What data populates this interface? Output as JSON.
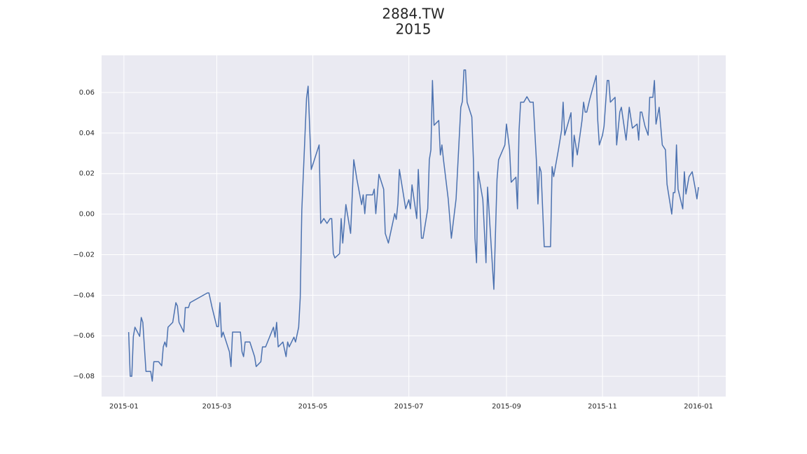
{
  "chart_data": {
    "type": "line",
    "title": "2884.TW",
    "subtitle": "2015",
    "x": [
      3,
      4,
      5,
      6,
      7,
      10,
      11,
      12,
      14,
      17,
      18,
      19,
      22,
      24,
      25,
      26,
      27,
      28,
      31,
      33,
      34,
      35,
      38,
      39,
      41,
      42,
      53,
      54,
      56,
      59,
      60,
      61,
      62,
      63,
      67,
      68,
      69,
      74,
      75,
      76,
      77,
      80,
      83,
      84,
      87,
      88,
      90,
      95,
      96,
      97,
      98,
      101,
      103,
      104,
      105,
      108,
      109,
      111,
      112,
      113,
      116,
      117,
      119,
      124,
      125,
      127,
      129,
      131,
      132,
      133,
      134,
      137,
      138,
      139,
      141,
      144,
      146,
      148,
      151,
      152,
      153,
      154,
      158,
      159,
      160,
      162,
      165,
      166,
      168,
      172,
      173,
      174,
      175,
      176,
      179,
      181,
      182,
      183,
      186,
      187,
      189,
      190,
      193,
      194,
      195,
      196,
      197,
      200,
      201,
      202,
      203,
      206,
      208,
      211,
      214,
      215,
      216,
      217,
      218,
      221,
      222,
      223,
      224,
      225,
      228,
      230,
      231,
      235,
      237,
      238,
      242,
      243,
      245,
      246,
      249,
      250,
      251,
      252,
      254,
      256,
      258,
      260,
      262,
      263,
      264,
      265,
      267,
      271,
      272,
      273,
      276,
      278,
      279,
      280,
      284,
      285,
      286,
      287,
      288,
      291,
      292,
      293,
      294,
      296,
      300,
      301,
      302,
      304,
      305,
      307,
      308,
      309,
      312,
      313,
      315,
      316,
      319,
      321,
      323,
      326,
      327,
      328,
      329,
      331,
      333,
      334,
      336,
      337,
      338,
      340,
      342,
      344,
      345,
      348,
      349,
      350,
      351,
      352,
      355,
      356,
      357,
      359,
      361,
      363,
      364,
      365
    ],
    "values": [
      -0.0582,
      -0.08,
      -0.08,
      -0.0603,
      -0.0558,
      -0.0603,
      -0.051,
      -0.0534,
      -0.0776,
      -0.0776,
      -0.0824,
      -0.0728,
      -0.0728,
      -0.0748,
      -0.0655,
      -0.0631,
      -0.0655,
      -0.0558,
      -0.0534,
      -0.0437,
      -0.0454,
      -0.0534,
      -0.0582,
      -0.0461,
      -0.0461,
      -0.0437,
      -0.0389,
      -0.0389,
      -0.0461,
      -0.0555,
      -0.0555,
      -0.0437,
      -0.0607,
      -0.0582,
      -0.0679,
      -0.0752,
      -0.0582,
      -0.0582,
      -0.0679,
      -0.0703,
      -0.0631,
      -0.0631,
      -0.0703,
      -0.0752,
      -0.0728,
      -0.0655,
      -0.0655,
      -0.0558,
      -0.0607,
      -0.0534,
      -0.0655,
      -0.0631,
      -0.0703,
      -0.0631,
      -0.0655,
      -0.0607,
      -0.0631,
      -0.0558,
      -0.0413,
      0.0019,
      0.0572,
      0.0631,
      0.022,
      0.0341,
      -0.0046,
      -0.0022,
      -0.0046,
      -0.0022,
      -0.0022,
      -0.0195,
      -0.0216,
      -0.0195,
      -0.0022,
      -0.0143,
      0.0047,
      -0.0095,
      0.0268,
      0.0171,
      0.0047,
      0.0095,
      0.0002,
      0.0095,
      0.0095,
      0.0123,
      0.0002,
      0.0196,
      0.0123,
      -0.0095,
      -0.0143,
      0.0002,
      -0.0026,
      0.005,
      0.022,
      0.0171,
      0.0026,
      0.0071,
      0.0026,
      0.0144,
      -0.0022,
      0.022,
      -0.0119,
      -0.0119,
      0.0026,
      0.0268,
      0.0317,
      0.0659,
      0.0438,
      0.0462,
      0.0292,
      0.0341,
      0.0268,
      0.0075,
      -0.0119,
      0.0075,
      0.0527,
      0.0555,
      0.0711,
      0.0711,
      0.0552,
      0.0479,
      0.0268,
      -0.0119,
      -0.024,
      0.0209,
      0.0071,
      -0.024,
      0.0133,
      -0.0371,
      0.0171,
      0.0268,
      0.0341,
      0.0444,
      0.0317,
      0.0157,
      0.0182,
      0.0026,
      0.0413,
      0.0552,
      0.0552,
      0.0579,
      0.0552,
      0.0552,
      0.0268,
      0.005,
      0.0234,
      0.0209,
      -0.0161,
      -0.0161,
      0.0234,
      0.0185,
      0.0317,
      0.0413,
      0.0552,
      0.0389,
      0.05,
      0.0234,
      0.0389,
      0.0341,
      0.0292,
      0.0462,
      0.0552,
      0.0503,
      0.0503,
      0.0569,
      0.0683,
      0.0462,
      0.0341,
      0.0389,
      0.0434,
      0.0659,
      0.0659,
      0.0552,
      0.0576,
      0.0341,
      0.0503,
      0.0527,
      0.0365,
      0.0527,
      0.0424,
      0.0444,
      0.0365,
      0.0503,
      0.0503,
      0.0434,
      0.0389,
      0.0576,
      0.0576,
      0.0659,
      0.0444,
      0.0527,
      0.0341,
      0.0317,
      0.0147,
      0.0,
      0.0106,
      0.0106,
      0.0341,
      0.0123,
      0.0026,
      0.0209,
      0.0099,
      0.0185,
      0.0209,
      0.0123,
      0.0075,
      0.0133
    ],
    "color": "#4c72b0",
    "xlim": [
      -14.2,
      382.3
    ],
    "xticks": [
      {
        "value": 0,
        "label": "2015-01"
      },
      {
        "value": 59,
        "label": "2015-03"
      },
      {
        "value": 120,
        "label": "2015-05"
      },
      {
        "value": 181,
        "label": "2015-07"
      },
      {
        "value": 243,
        "label": "2015-09"
      },
      {
        "value": 304,
        "label": "2015-11"
      },
      {
        "value": 365,
        "label": "2016-01"
      }
    ],
    "ylim": [
      -0.09,
      0.0783
    ],
    "yticks": [
      {
        "value": -0.08,
        "label": "−0.08"
      },
      {
        "value": -0.06,
        "label": "−0.06"
      },
      {
        "value": -0.04,
        "label": "−0.04"
      },
      {
        "value": -0.02,
        "label": "−0.02"
      },
      {
        "value": 0,
        "label": "0.00"
      },
      0.02,
      0.04,
      0.06
    ],
    "grid": true
  }
}
